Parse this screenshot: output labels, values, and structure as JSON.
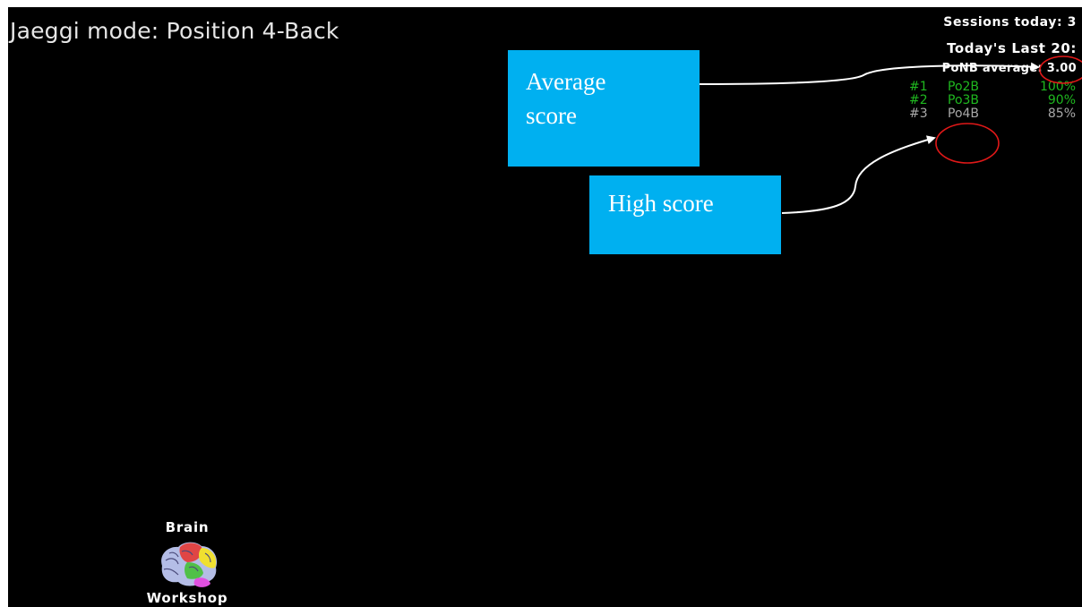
{
  "header": {
    "mode_title": "Jaeggi mode: Position 4-Back"
  },
  "stats": {
    "sessions_today": "Sessions today: 3",
    "todays_last": "Today's Last 20:",
    "average": "PoNB average: 3.00"
  },
  "scores": [
    {
      "rank": "#1",
      "mode": "Po2B",
      "percent": "100%",
      "color": "#1fb81f"
    },
    {
      "rank": "#2",
      "mode": "Po3B",
      "percent": "90%",
      "color": "#1fb81f"
    },
    {
      "rank": "#3",
      "mode": "Po4B",
      "percent": "85%",
      "color": "#a8a8a8"
    }
  ],
  "callouts": {
    "average": {
      "line1": "Average",
      "line2": "score"
    },
    "high": {
      "label": "High score"
    }
  },
  "logo": {
    "top_text": "Brain",
    "bottom_text": "Workshop"
  },
  "colors": {
    "background": "#000000",
    "callout_fill": "#00b0f0",
    "highlight_ring": "#e01818",
    "good_score": "#1fb81f",
    "neutral_score": "#a8a8a8"
  }
}
